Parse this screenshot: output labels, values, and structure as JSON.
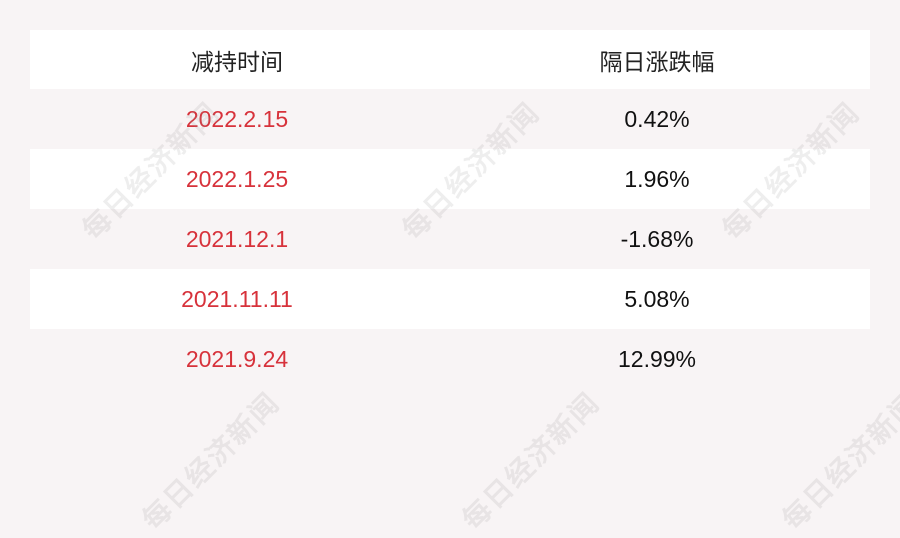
{
  "table": {
    "headers": [
      "减持时间",
      "隔日涨跌幅"
    ],
    "rows": [
      {
        "date": "2022.2.15",
        "change": "0.42%"
      },
      {
        "date": "2022.1.25",
        "change": "1.96%"
      },
      {
        "date": "2021.12.1",
        "change": "-1.68%"
      },
      {
        "date": "2021.11.11",
        "change": "5.08%"
      },
      {
        "date": "2021.9.24",
        "change": "12.99%"
      }
    ]
  },
  "watermark": "每日经济新闻",
  "colors": {
    "background": "#f8f4f5",
    "date_text": "#d7323b",
    "row_alt": "#ffffff"
  }
}
